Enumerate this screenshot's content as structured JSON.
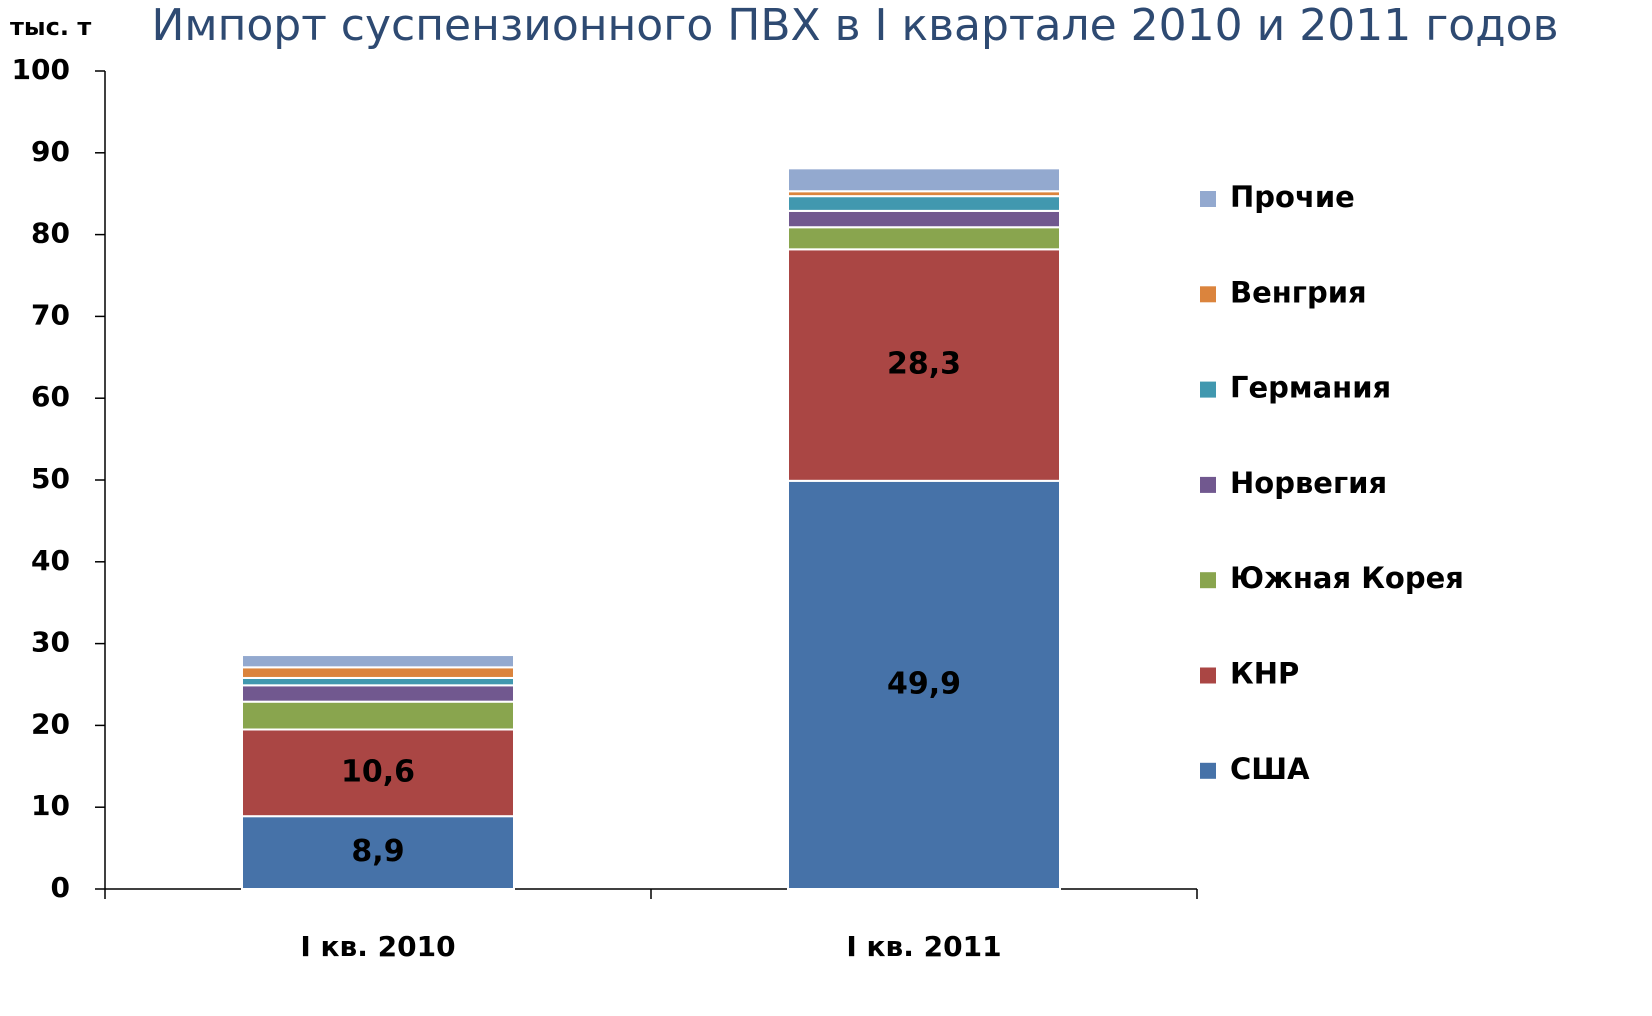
{
  "chart_data": {
    "type": "stacked_bar",
    "title": "Импорт суспензионного ПВХ в I квартале 2010 и 2011 годов",
    "ylabel": "тыс. т",
    "categories": [
      "I кв. 2010",
      "I кв. 2011"
    ],
    "series": [
      {
        "name": "США",
        "color": "#4672a8",
        "values": [
          8.9,
          49.9
        ],
        "value_labels": [
          "8,9",
          "49,9"
        ]
      },
      {
        "name": "КНР",
        "color": "#aa4644",
        "values": [
          10.6,
          28.3
        ],
        "value_labels": [
          "10,6",
          "28,3"
        ]
      },
      {
        "name": "Южная Корея",
        "color": "#89a54e",
        "values": [
          3.4,
          2.7
        ]
      },
      {
        "name": "Норвегия",
        "color": "#71588f",
        "values": [
          2.0,
          2.0
        ]
      },
      {
        "name": "Германия",
        "color": "#4198af",
        "values": [
          0.9,
          1.8
        ]
      },
      {
        "name": "Венгрия",
        "color": "#db843d",
        "values": [
          1.3,
          0.6
        ]
      },
      {
        "name": "Прочие",
        "color": "#93a9cf",
        "values": [
          1.5,
          2.8
        ]
      }
    ],
    "ylim": [
      0,
      100
    ],
    "yticks": [
      0,
      10,
      20,
      30,
      40,
      50,
      60,
      70,
      80,
      90,
      100
    ]
  }
}
